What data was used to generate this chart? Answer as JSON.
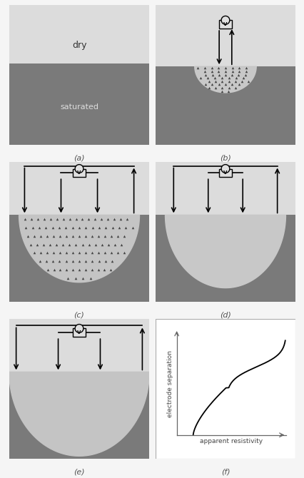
{
  "fig_width": 4.27,
  "fig_height": 6.7,
  "bg_color": "#f5f5f5",
  "panel_bg": "#f0f0f0",
  "dry_color": "#dcdcdc",
  "saturated_color": "#7a7a7a",
  "current_zone_color": "#c0c0c0",
  "panel_labels": [
    "(a)",
    "(b)",
    "(c)",
    "(d)",
    "(e)",
    "(f)"
  ],
  "dry_label": "dry",
  "sat_label": "saturated",
  "ylabel_f": "electrode separation",
  "xlabel_f": "apparent resistivity",
  "panel_border_color": "#aaaaaa",
  "label_fontsize": 8,
  "text_color": "#555555"
}
